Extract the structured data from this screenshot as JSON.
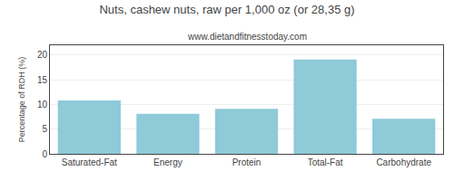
{
  "chart_data": {
    "type": "bar",
    "title": "Nuts, cashew nuts, raw per 1,000 oz (or 28,35 g)",
    "subtitle": "www.dietandfitnesstoday.com",
    "categories": [
      "Saturated-Fat",
      "Energy",
      "Protein",
      "Total-Fat",
      "Carbohydrate"
    ],
    "values": [
      10.8,
      8.1,
      9.1,
      19.1,
      7.1
    ],
    "color": "#8ecad8",
    "ylabel": "Percentage of RDH (%)",
    "ylim": [
      0,
      22
    ],
    "yticks": [
      0,
      5,
      10,
      15,
      20
    ],
    "grid": true
  }
}
